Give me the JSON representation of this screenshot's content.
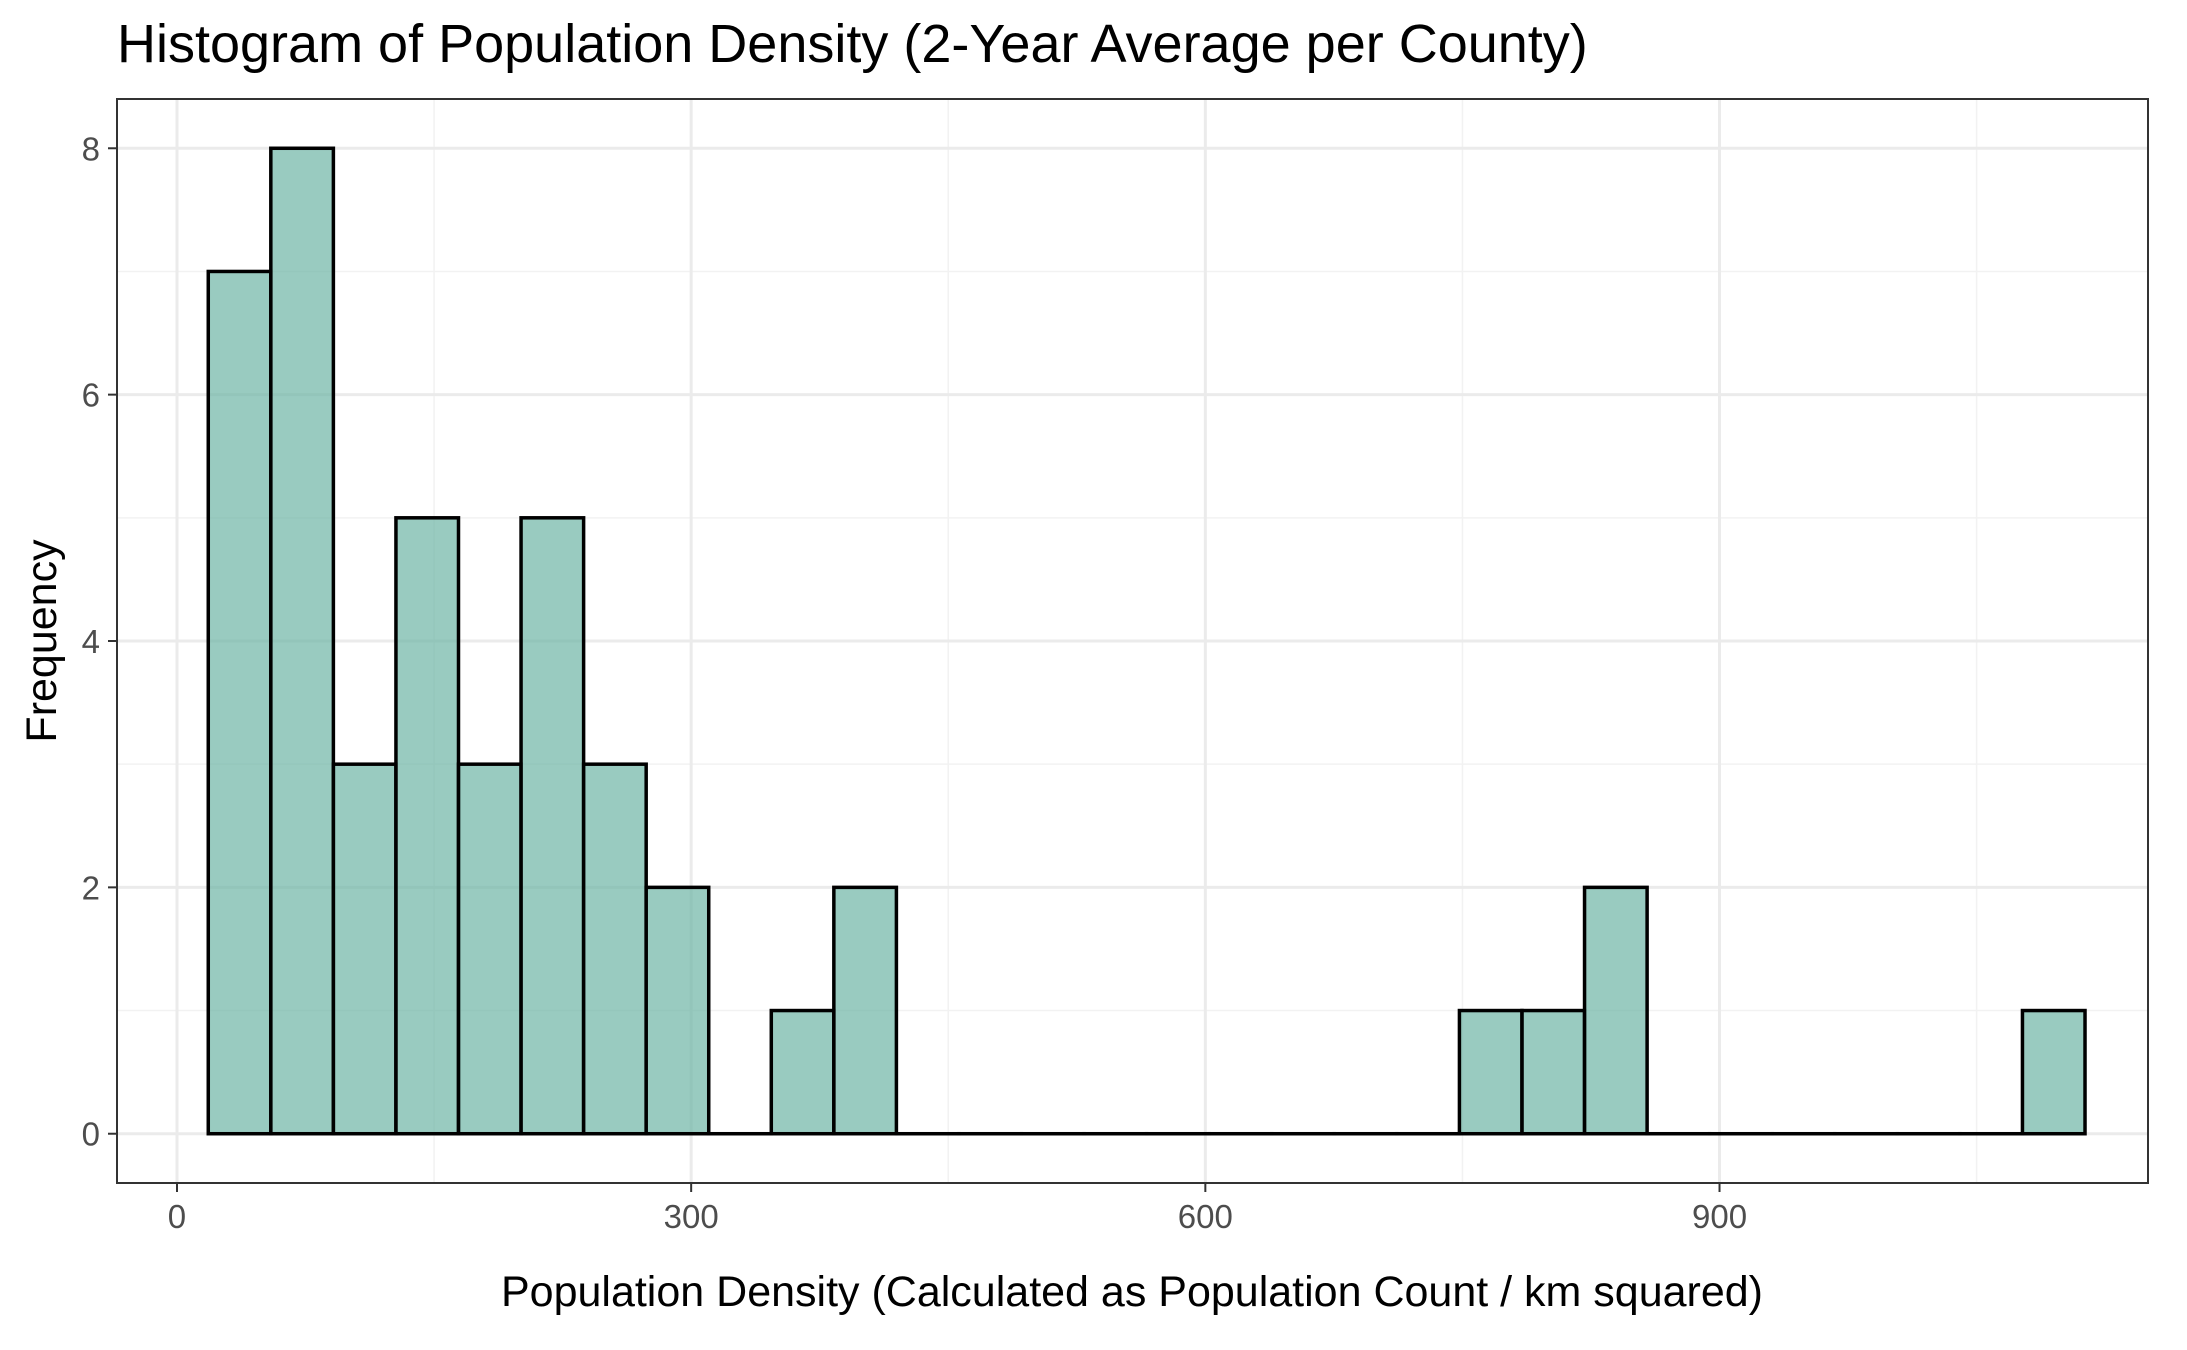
{
  "chart_data": {
    "type": "bar",
    "title": "Histogram of Population Density (2-Year Average per County)",
    "xlabel": "Population Density (Calculated as Population Count / km squared)",
    "ylabel": "Frequency",
    "xlim": [
      -35,
      1150
    ],
    "ylim": [
      -0.4,
      8.4
    ],
    "x_ticks": [
      0,
      300,
      600,
      900
    ],
    "y_ticks": [
      0,
      2,
      4,
      6,
      8
    ],
    "bin_width": 36.5,
    "bins": [
      {
        "start": 18.25,
        "end": 54.75,
        "count": 7
      },
      {
        "start": 54.75,
        "end": 91.25,
        "count": 8
      },
      {
        "start": 91.25,
        "end": 127.75,
        "count": 3
      },
      {
        "start": 127.75,
        "end": 164.25,
        "count": 5
      },
      {
        "start": 164.25,
        "end": 200.75,
        "count": 3
      },
      {
        "start": 200.75,
        "end": 237.25,
        "count": 5
      },
      {
        "start": 237.25,
        "end": 273.75,
        "count": 3
      },
      {
        "start": 273.75,
        "end": 310.25,
        "count": 2
      },
      {
        "start": 310.25,
        "end": 346.75,
        "count": 0
      },
      {
        "start": 346.75,
        "end": 383.25,
        "count": 1
      },
      {
        "start": 383.25,
        "end": 419.75,
        "count": 2
      },
      {
        "start": 419.75,
        "end": 456.25,
        "count": 0
      },
      {
        "start": 456.25,
        "end": 492.75,
        "count": 0
      },
      {
        "start": 492.75,
        "end": 529.25,
        "count": 0
      },
      {
        "start": 529.25,
        "end": 565.75,
        "count": 0
      },
      {
        "start": 565.75,
        "end": 602.25,
        "count": 0
      },
      {
        "start": 602.25,
        "end": 638.75,
        "count": 0
      },
      {
        "start": 638.75,
        "end": 675.25,
        "count": 0
      },
      {
        "start": 675.25,
        "end": 711.75,
        "count": 0
      },
      {
        "start": 711.75,
        "end": 748.25,
        "count": 0
      },
      {
        "start": 748.25,
        "end": 784.75,
        "count": 1
      },
      {
        "start": 784.75,
        "end": 821.25,
        "count": 1
      },
      {
        "start": 821.25,
        "end": 857.75,
        "count": 2
      },
      {
        "start": 857.75,
        "end": 894.25,
        "count": 0
      },
      {
        "start": 894.25,
        "end": 930.75,
        "count": 0
      },
      {
        "start": 930.75,
        "end": 967.25,
        "count": 0
      },
      {
        "start": 967.25,
        "end": 1003.75,
        "count": 0
      },
      {
        "start": 1003.75,
        "end": 1040.25,
        "count": 0
      },
      {
        "start": 1040.25,
        "end": 1076.75,
        "count": 0
      },
      {
        "start": 1076.75,
        "end": 1113.25,
        "count": 1
      }
    ],
    "grid": true,
    "colors": {
      "bar_fill": "#69b3a2",
      "bar_fill_opacity": 0.68,
      "bar_outline": "#000000",
      "panel_border": "#333333",
      "grid_major": "#ebebeb",
      "grid_minor": "#f2f2f2",
      "tick_label": "#4d4d4d"
    }
  }
}
